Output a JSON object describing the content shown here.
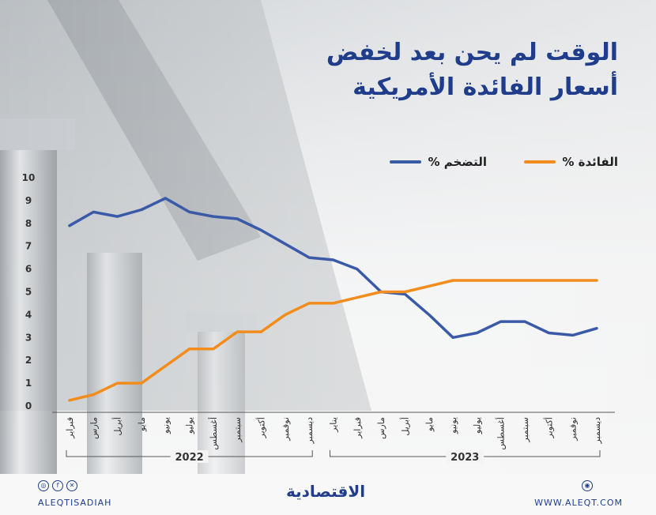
{
  "title_line1": "الوقت لم يحن بعد لخفض",
  "title_line2": "أسعار الفائدة الأمريكية",
  "legend": {
    "rate_label": "الفائدة %",
    "inflation_label": "التضخم %"
  },
  "colors": {
    "title": "#1f3d8a",
    "rate": "#f28c1c",
    "inflation": "#3a5aa8",
    "axis": "#333333"
  },
  "chart_data": {
    "type": "line",
    "x": [
      "فبراير",
      "مارس",
      "أبريل",
      "مايو",
      "يونيو",
      "يوليو",
      "أغسطس",
      "سبتمبر",
      "أكتوبر",
      "نوفمبر",
      "ديسمبر",
      "يناير",
      "فبراير",
      "مارس",
      "أبريل",
      "مايو",
      "يونيو",
      "يوليو",
      "أغسطس",
      "سبتمبر",
      "أكتوبر",
      "نوفمبر",
      "ديسمبر"
    ],
    "year_groups": [
      {
        "label": "2022",
        "start": 0,
        "end": 10
      },
      {
        "label": "2023",
        "start": 11,
        "end": 22
      }
    ],
    "ylim": [
      0,
      10
    ],
    "yticks": [
      0,
      1,
      2,
      3,
      4,
      5,
      6,
      7,
      8,
      9,
      10
    ],
    "series": [
      {
        "name": "التضخم %",
        "values": [
          7.9,
          8.5,
          8.3,
          8.6,
          9.1,
          8.5,
          8.3,
          8.2,
          7.7,
          7.1,
          6.5,
          6.4,
          6.0,
          5.0,
          4.9,
          4.0,
          3.0,
          3.2,
          3.7,
          3.7,
          3.2,
          3.1,
          3.4
        ]
      },
      {
        "name": "الفائدة %",
        "values": [
          0.25,
          0.5,
          1.0,
          1.0,
          1.75,
          2.5,
          2.5,
          3.25,
          3.25,
          4.0,
          4.5,
          4.5,
          4.75,
          5.0,
          5.0,
          5.25,
          5.5,
          5.5,
          5.5,
          5.5,
          5.5,
          5.5,
          5.5
        ]
      }
    ],
    "grid": false
  },
  "footer": {
    "website": "WWW.ALEQT.COM",
    "social_handle": "ALEQTISADIAH",
    "brand": "الاقتصادية",
    "social_icons": [
      "instagram-icon",
      "facebook-icon",
      "x-icon"
    ]
  }
}
